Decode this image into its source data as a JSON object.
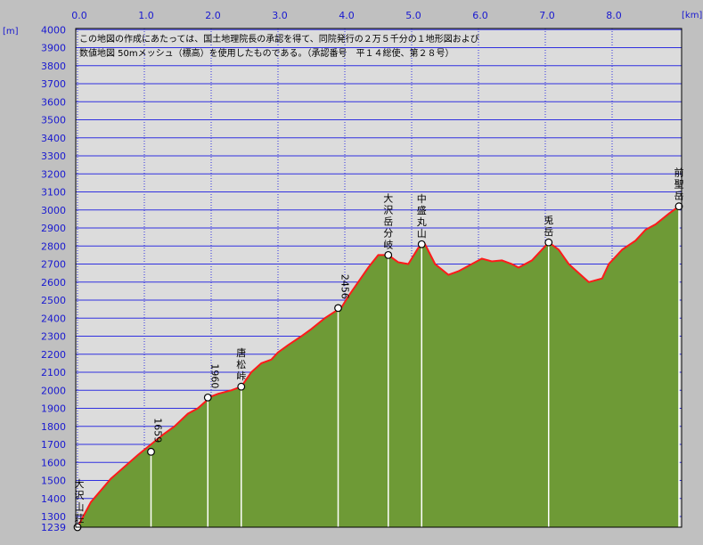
{
  "chart_data": {
    "type": "area",
    "title": "",
    "x_unit": "[km]",
    "y_unit": "[m]",
    "xlim": [
      0,
      9.0
    ],
    "ylim": [
      1239,
      4000
    ],
    "x_ticks": [
      "0.0",
      "1.0",
      "2.0",
      "3.0",
      "4.0",
      "5.0",
      "6.0",
      "7.0",
      "8.0"
    ],
    "y_ticks": [
      "4000",
      "3900",
      "3800",
      "3700",
      "3600",
      "3500",
      "3400",
      "3300",
      "3200",
      "3100",
      "3000",
      "2900",
      "2800",
      "2700",
      "2600",
      "2500",
      "2400",
      "2300",
      "2200",
      "2100",
      "2000",
      "1900",
      "1800",
      "1700",
      "1600",
      "1500",
      "1400",
      "1300",
      "1239"
    ],
    "grid": true,
    "notes": [
      "この地図の作成にあたっては、国土地理院長の承認を得て、同院発行の２万５千分の１地形図および",
      "数値地図 50mメッシュ（標高）を使用したものである。（承認番号　平１４総使、第２８号）"
    ],
    "colors": {
      "fill": "#6e9a36",
      "line": "#ff1a1a",
      "grid": "#3030e0",
      "plot_bg": "#dcdcdc"
    },
    "series": [
      {
        "x": [
          0,
          0.2,
          0.5,
          0.9,
          1.1,
          1.3,
          1.45,
          1.65,
          1.8,
          2.0,
          2.1,
          2.3,
          2.45,
          2.6,
          2.75,
          2.9,
          3.0,
          3.15,
          3.35,
          3.5,
          3.7,
          3.95,
          4.05,
          4.2,
          4.35,
          4.5,
          4.65,
          4.8,
          4.95,
          5.1,
          5.2,
          5.35,
          5.55,
          5.7,
          5.9,
          6.05,
          6.2,
          6.35,
          6.5,
          6.6,
          6.8,
          7.05,
          7.2,
          7.35,
          7.5,
          7.65,
          7.85,
          7.95,
          8.05,
          8.15,
          8.35,
          8.5,
          8.65,
          8.85,
          9.0
        ],
        "y": [
          1239,
          1380,
          1510,
          1640,
          1700,
          1760,
          1800,
          1870,
          1900,
          1965,
          1980,
          2000,
          2020,
          2100,
          2150,
          2170,
          2210,
          2250,
          2300,
          2340,
          2400,
          2460,
          2520,
          2600,
          2680,
          2750,
          2750,
          2710,
          2700,
          2790,
          2810,
          2700,
          2640,
          2660,
          2700,
          2730,
          2715,
          2720,
          2700,
          2680,
          2720,
          2820,
          2780,
          2700,
          2650,
          2600,
          2620,
          2700,
          2740,
          2780,
          2830,
          2890,
          2920,
          2980,
          3020
        ]
      }
    ],
    "points": [
      {
        "x": 0.0,
        "y": 1239,
        "label": "大沢山荘"
      },
      {
        "x": 1.1,
        "y": 1659,
        "label": "1659"
      },
      {
        "x": 1.95,
        "y": 1960,
        "label": "1960"
      },
      {
        "x": 2.45,
        "y": 2020,
        "label": "唐松峠"
      },
      {
        "x": 3.9,
        "y": 2456,
        "label": "2456"
      },
      {
        "x": 4.65,
        "y": 2750,
        "label": "大沢岳分岐"
      },
      {
        "x": 5.15,
        "y": 2810,
        "label": "中盛丸山"
      },
      {
        "x": 7.05,
        "y": 2820,
        "label": "兎岳"
      },
      {
        "x": 9.0,
        "y": 3020,
        "label": "前聖岳"
      }
    ]
  }
}
